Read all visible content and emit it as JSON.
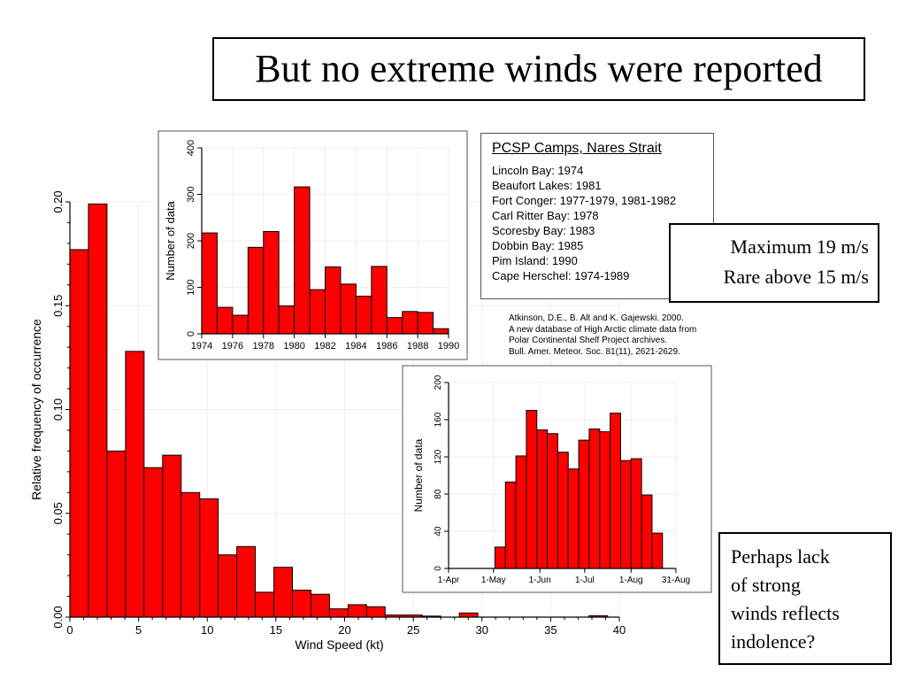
{
  "slide": {
    "title": "But no extreme winds were reported",
    "legend": {
      "title": "PCSP Camps, Nares Strait",
      "items": [
        "Lincoln Bay: 1974",
        "Beaufort Lakes: 1981",
        "Fort Conger: 1977-1979, 1981-1982",
        "Carl Ritter Bay: 1978",
        "Scoresby Bay: 1983",
        "Dobbin Bay: 1985",
        "Pim Island: 1990",
        "Cape Herschel: 1974-1989"
      ]
    },
    "citation": [
      "Atkinson, D.E., B. Alt and K. Gajewski. 2000.",
      "A new database of High Arctic climate data from",
      "Polar Continental Shelf Project archives.",
      "Bull. Amer. Meteor. Soc. 81(11), 2621-2629."
    ],
    "wind_note": [
      "Maximum 19 m/s",
      "Rare above 15 m/s"
    ],
    "indolence_note": [
      "Perhaps lack",
      "of strong",
      "winds reflects",
      "indolence?"
    ]
  },
  "chart_data": [
    {
      "type": "bar",
      "id": "wind",
      "xlabel": "Wind Speed (kt)",
      "ylabel": "Relative frequency of occurrence",
      "xlim": [
        0,
        40
      ],
      "ylim": [
        0,
        0.2
      ],
      "xticks": [
        0,
        5,
        10,
        15,
        20,
        25,
        30,
        35,
        40
      ],
      "yticks": [
        0,
        0.05,
        0.1,
        0.15,
        0.2
      ],
      "ytick_labels": [
        "0.00",
        "0.05",
        "0.10",
        "0.15",
        "0.20"
      ],
      "bin_width": 1.35,
      "bin_start": 0,
      "values": [
        0.177,
        0.199,
        0.08,
        0.128,
        0.072,
        0.078,
        0.06,
        0.057,
        0.03,
        0.034,
        0.012,
        0.024,
        0.013,
        0.011,
        0.004,
        0.006,
        0.005,
        0.001,
        0.001,
        0.0005,
        0,
        0.002,
        0,
        0,
        0,
        0,
        0,
        0,
        0.0007
      ],
      "color": "#ff0000"
    },
    {
      "type": "bar",
      "id": "years",
      "ylabel": "Number of data",
      "xlim": [
        1974,
        1990
      ],
      "ylim": [
        0,
        400
      ],
      "xticks": [
        1974,
        1976,
        1978,
        1980,
        1982,
        1984,
        1986,
        1988,
        1990
      ],
      "yticks": [
        0,
        100,
        200,
        300,
        400
      ],
      "bin_width": 1,
      "bin_start": 1974,
      "values": [
        217,
        57,
        40,
        186,
        220,
        60,
        316,
        95,
        144,
        107,
        81,
        145,
        35,
        48,
        46,
        11
      ],
      "color": "#ff0000"
    },
    {
      "type": "bar",
      "id": "season",
      "ylabel": "Number of data",
      "xlim": [
        0,
        152
      ],
      "ylim": [
        0,
        200
      ],
      "xticks": [
        0,
        30,
        61,
        91,
        122,
        152
      ],
      "xtick_labels": [
        "1-Apr",
        "1-May",
        "1-Jun",
        "1-Jul",
        "1-Aug",
        "31-Aug"
      ],
      "yticks": [
        0,
        40,
        80,
        120,
        160,
        200
      ],
      "bin_width": 7,
      "bin_start": 31,
      "values": [
        23,
        93,
        121,
        170,
        149,
        145,
        125,
        107,
        138,
        150,
        147,
        167,
        116,
        118,
        79,
        38
      ],
      "color": "#ff0000"
    }
  ]
}
